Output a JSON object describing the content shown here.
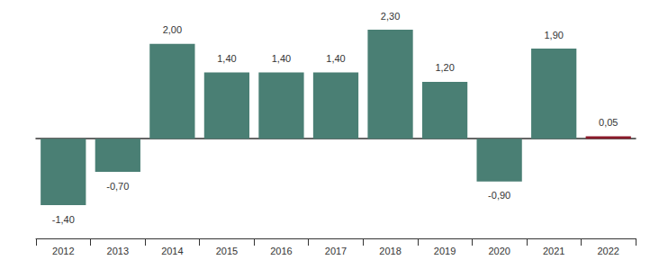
{
  "chart_data": {
    "type": "bar",
    "categories": [
      "2012",
      "2013",
      "2014",
      "2015",
      "2016",
      "2017",
      "2018",
      "2019",
      "2020",
      "2021",
      "2022"
    ],
    "values": [
      -1.4,
      -0.7,
      2.0,
      1.4,
      1.4,
      1.4,
      2.3,
      1.2,
      -0.9,
      1.9,
      0.05
    ],
    "value_labels": [
      "-1,40",
      "-0,70",
      "2,00",
      "1,40",
      "1,40",
      "1,40",
      "2,30",
      "1,20",
      "-0,90",
      "1,90",
      "0,05"
    ],
    "colors": [
      "#4a7f74",
      "#4a7f74",
      "#4a7f74",
      "#4a7f74",
      "#4a7f74",
      "#4a7f74",
      "#4a7f74",
      "#4a7f74",
      "#4a7f74",
      "#4a7f74",
      "#8b1a2a"
    ],
    "data_labels": true,
    "tick_labels": "x",
    "grid": false
  }
}
